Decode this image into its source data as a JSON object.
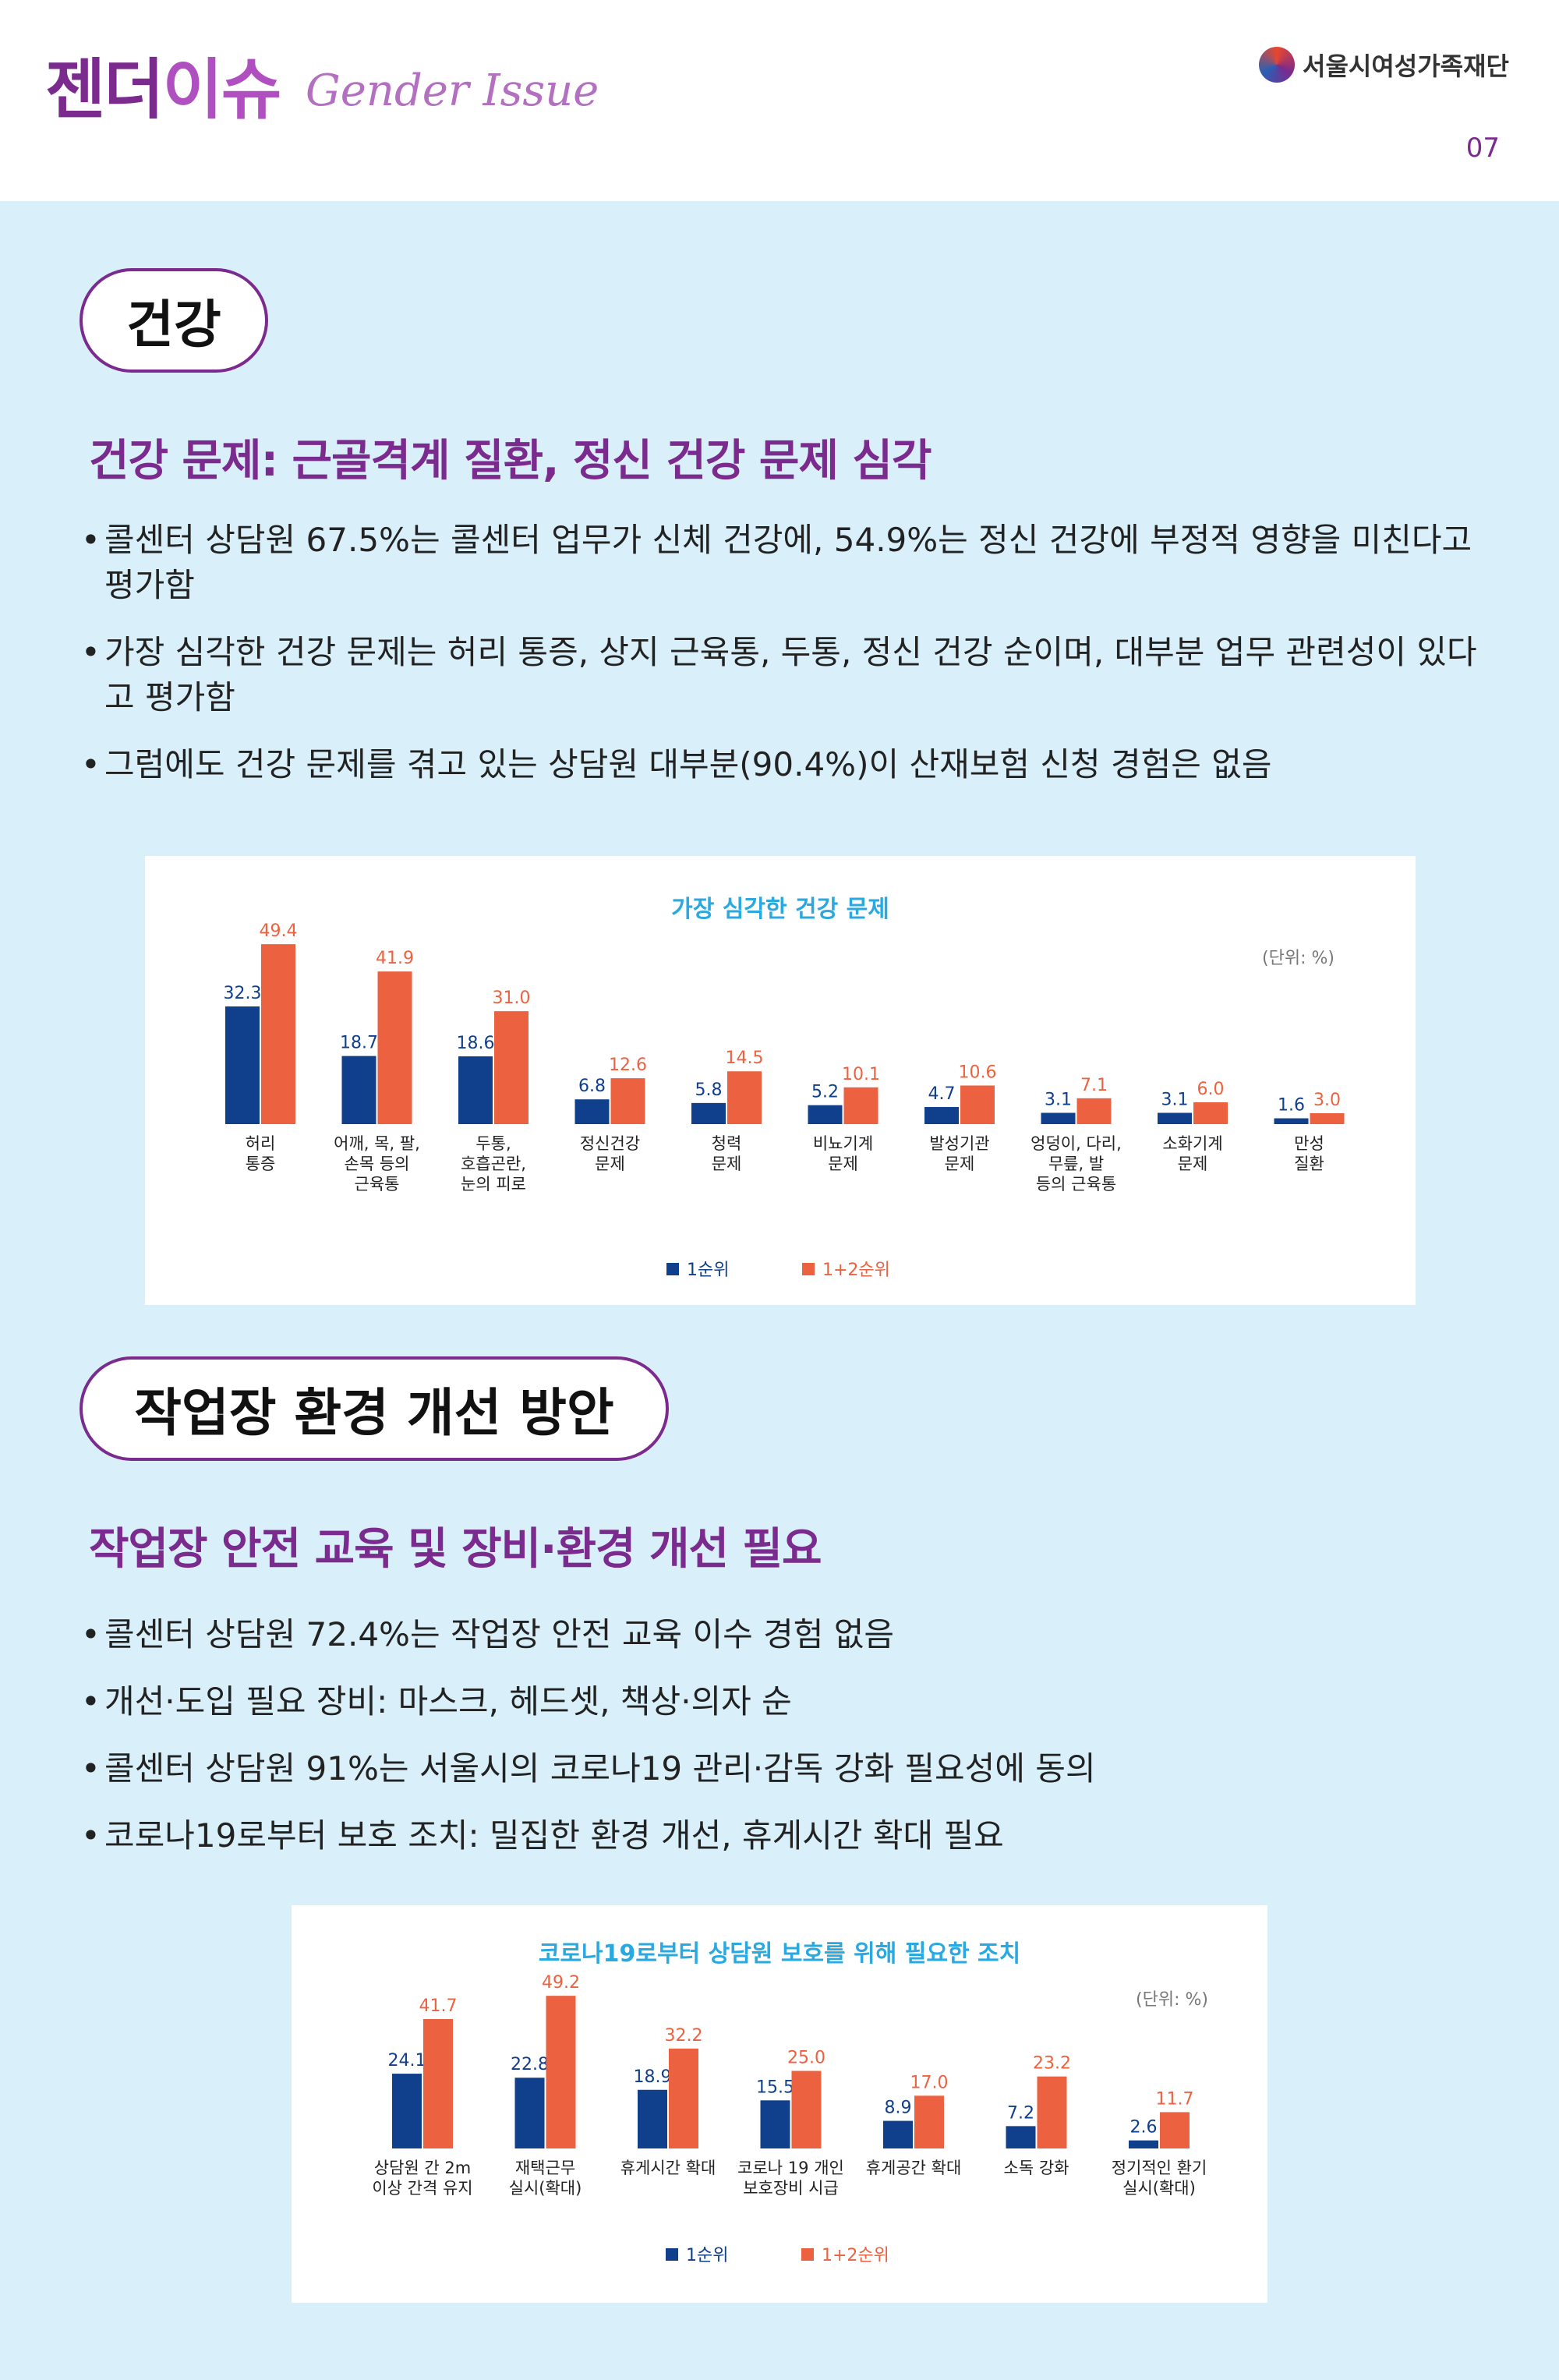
{
  "header": {
    "brand_ko_part1": "젠더",
    "brand_ko_part2": "이슈",
    "brand_en": "Gender Issue",
    "org_name": "서울시여성가족재단",
    "page_number": "07"
  },
  "section1": {
    "pill": "건강",
    "subhead": "건강 문제: 근골격계 질환, 정신 건강 문제 심각",
    "bullets": [
      "콜센터 상담원 67.5%는 콜센터 업무가 신체 건강에, 54.9%는 정신 건강에 부정적 영향을 미친다고 평가함",
      "가장 심각한 건강 문제는 허리 통증, 상지 근육통, 두통, 정신 건강 순이며, 대부분 업무 관련성이 있다고 평가함",
      "그럼에도 건강 문제를 겪고 있는 상담원 대부분(90.4%)이 산재보험 신청 경험은 없음"
    ]
  },
  "section2": {
    "pill": "작업장 환경 개선 방안",
    "subhead": "작업장 안전 교육 및 장비·환경 개선 필요",
    "bullets": [
      "콜센터 상담원 72.4%는 작업장 안전 교육 이수 경험 없음",
      "개선·도입 필요 장비: 마스크, 헤드셋, 책상·의자 순",
      "콜센터 상담원 91%는 서울시의 코로나19 관리·감독 강화 필요성에 동의",
      "코로나19로부터 보호 조치: 밀집한 환경 개선, 휴게시간 확대 필요"
    ]
  },
  "colors": {
    "series1": "#103f8c",
    "series2": "#ec6240",
    "title": "#29a9df",
    "purple": "#7b2a8e"
  },
  "chart_data": [
    {
      "type": "bar",
      "title": "가장 심각한 건강 문제",
      "unit": "(단위: %)",
      "categories": [
        [
          "허리",
          "통증"
        ],
        [
          "어깨, 목, 팔,",
          "손목 등의",
          "근육통"
        ],
        [
          "두통,",
          "호흡곤란,",
          "눈의 피로"
        ],
        [
          "정신건강",
          "문제"
        ],
        [
          "청력",
          "문제"
        ],
        [
          "비뇨기계",
          "문제"
        ],
        [
          "발성기관",
          "문제"
        ],
        [
          "엉덩이, 다리,",
          "무릎, 발",
          "등의 근육통"
        ],
        [
          "소화기계",
          "문제"
        ],
        [
          "만성",
          "질환"
        ]
      ],
      "series": [
        {
          "name": "1순위",
          "values": [
            32.3,
            18.7,
            18.6,
            6.8,
            5.8,
            5.2,
            4.7,
            3.1,
            3.1,
            1.6
          ],
          "labels": [
            "32.3",
            "18.7",
            "18.6",
            "6.8",
            "5.8",
            "5.2",
            "4.7",
            "3.1",
            "3.1",
            "1.6"
          ]
        },
        {
          "name": "1+2순위",
          "values": [
            49.4,
            41.9,
            31.0,
            12.6,
            14.5,
            10.1,
            10.6,
            7.1,
            6.0,
            3.0
          ],
          "labels": [
            "49.4",
            "41.9",
            "31.0",
            "12.6",
            "14.5",
            "10.1",
            "10.6",
            "7.1",
            "6.0",
            "3.0"
          ]
        }
      ],
      "ylim": [
        0,
        52
      ],
      "legend": "bottom-center"
    },
    {
      "type": "bar",
      "title": "코로나19로부터 상담원 보호를 위해 필요한 조치",
      "unit": "(단위: %)",
      "categories": [
        [
          "상담원 간 2m",
          "이상 간격 유지"
        ],
        [
          "재택근무",
          "실시(확대)"
        ],
        [
          "휴게시간 확대"
        ],
        [
          "코로나 19 개인",
          "보호장비 시급"
        ],
        [
          "휴게공간 확대"
        ],
        [
          "소독 강화"
        ],
        [
          "정기적인 환기",
          "실시(확대)"
        ]
      ],
      "series": [
        {
          "name": "1순위",
          "values": [
            24.1,
            22.8,
            18.9,
            15.5,
            8.9,
            7.2,
            2.6
          ],
          "labels": [
            "24.1",
            "22.8",
            "18.9",
            "15.5",
            "8.9",
            "7.2",
            "2.6"
          ]
        },
        {
          "name": "1+2순위",
          "values": [
            41.7,
            49.2,
            32.2,
            25.0,
            17.0,
            23.2,
            11.7
          ],
          "labels": [
            "41.7",
            "49.2",
            "32.2",
            "25.0",
            "17.0",
            "23.2",
            "11.7"
          ]
        }
      ],
      "ylim": [
        0,
        52
      ],
      "legend": "bottom-center"
    }
  ]
}
